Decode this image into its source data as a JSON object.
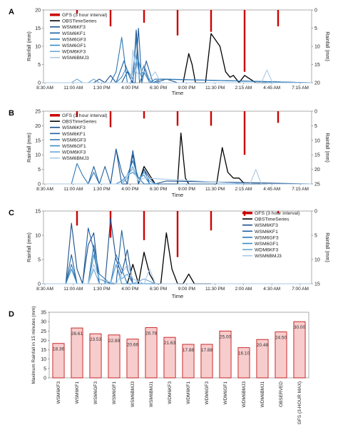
{
  "colors": {
    "obs": "#000000",
    "gfs": "#cc0000",
    "wsm6kf3": "#1b4e8a",
    "wsm6kf1": "#1f5f9e",
    "wsm6gf3": "#2e78b5",
    "wsm6gf1": "#3a8cc7",
    "wdm6kf3": "#6aa6d6",
    "wsm6bmj3": "#a9c9e6",
    "bar_fill": "#f7cccc",
    "bar_stroke": "#c00000"
  },
  "chart_data": [
    {
      "type": "line",
      "panel": "A",
      "xlabel": "Time",
      "ylabel": "Rainfall (mm)",
      "y2label": "Rainfall (mm)",
      "ylim": [
        0,
        20
      ],
      "y_ticks": [
        0,
        5,
        10,
        15,
        20
      ],
      "y2lim": [
        0,
        20
      ],
      "y2_ticks": [
        0,
        5,
        10,
        15,
        20
      ],
      "y2_inverted": true,
      "x_ticks": [
        "8:30 AM",
        "11:00 AM",
        "1:30 PM",
        "4:00 PM",
        "6:30 PM",
        "9:00 PM",
        "11:30 PM",
        "2:15 AM",
        "4:45 AM",
        "7:15 AM"
      ],
      "legend": [
        "GFS (3 hour interval)",
        "OBSTimeSeries",
        "WSM6KF3",
        "WSM6KF1",
        "WSM6GF3",
        "WSM6GF1",
        "WDM6KF3",
        "WSM6BMJ3"
      ],
      "legend_position": "top-left",
      "series": [
        {
          "name": "GFS (3 hour interval)",
          "key": "gfs",
          "style": "bar-secondary",
          "x": [
            3.0,
            6.0,
            9.0,
            12.0,
            15.0,
            18.0,
            21.0
          ],
          "values": [
            1.0,
            4.5,
            3.5,
            7.0,
            6.0,
            17.0,
            4.5
          ]
        },
        {
          "name": "OBSTimeSeries",
          "key": "obs",
          "x": [
            12.5,
            13.0,
            13.3,
            13.6,
            14.0,
            14.5,
            15.0,
            15.8,
            16.3,
            16.7,
            17.0,
            17.5,
            18.0,
            18.5,
            19.0,
            20.0
          ],
          "values": [
            0,
            8,
            5,
            0,
            0,
            0,
            13.5,
            10,
            3,
            1.5,
            2,
            0,
            2,
            1,
            0,
            0
          ]
        },
        {
          "name": "WSM6KF3",
          "key": "wsm6kf3",
          "x": [
            0,
            4.5,
            5.0,
            5.5,
            6.0,
            6.5,
            7.0,
            7.5,
            8.0,
            8.3,
            8.6,
            9.0,
            9.5,
            10,
            11,
            12,
            24
          ],
          "values": [
            0,
            0,
            1,
            0,
            2,
            0,
            0,
            3,
            0,
            14.5,
            2,
            4.5,
            0,
            0,
            1,
            0,
            0
          ]
        },
        {
          "name": "WSM6KF1",
          "key": "wsm6kf1",
          "x": [
            0,
            6.5,
            7.2,
            7.9,
            8.2,
            8.5,
            8.8,
            9.2,
            9.8,
            10.5,
            24
          ],
          "values": [
            0,
            0,
            6,
            0,
            0,
            15,
            0,
            6,
            0,
            1,
            0
          ]
        },
        {
          "name": "WSM6GF3",
          "key": "wsm6gf3",
          "x": [
            0,
            6.0,
            6.5,
            7.0,
            7.5,
            8.0,
            8.3,
            8.6,
            9.0,
            9.5,
            10.0,
            24
          ],
          "values": [
            0,
            0,
            3,
            12.5,
            0,
            0,
            12.5,
            0,
            3,
            0,
            1,
            0
          ]
        },
        {
          "name": "WSM6GF1",
          "key": "wsm6gf1",
          "x": [
            0,
            6.5,
            7.0,
            7.4,
            8.0,
            8.4,
            8.8,
            9.2,
            9.7,
            24
          ],
          "values": [
            0,
            0,
            1.5,
            4,
            1,
            7,
            3,
            2,
            0,
            0
          ]
        },
        {
          "name": "WDM6KF3",
          "key": "wdm6kf3",
          "x": [
            0,
            2.5,
            3.0,
            3.5,
            4.0,
            4.5,
            5.0,
            7.8,
            8.2,
            8.6,
            9.0,
            9.5,
            24
          ],
          "values": [
            0,
            0,
            1,
            0,
            0,
            1,
            0,
            0,
            8,
            2,
            3,
            0,
            0
          ]
        },
        {
          "name": "WSM6BMJ3",
          "key": "wsm6bmj3",
          "x": [
            0,
            7.8,
            8.0,
            8.3,
            8.6,
            9.0,
            9.5,
            10.0,
            10.5,
            11,
            19.5,
            20.0,
            20.5,
            24
          ],
          "values": [
            0,
            0,
            9,
            3,
            2,
            5,
            1,
            3,
            0,
            0,
            0,
            3.5,
            0,
            0
          ]
        }
      ]
    },
    {
      "type": "line",
      "panel": "B",
      "xlabel": "Time",
      "ylabel": "Rainfall (mm)",
      "y2label": "Rainfall (mm)",
      "ylim": [
        0,
        25
      ],
      "y_ticks": [
        0,
        5,
        10,
        15,
        20,
        25
      ],
      "y2lim": [
        0,
        25
      ],
      "y2_ticks": [
        0,
        5,
        10,
        15,
        20,
        25
      ],
      "y2_inverted": true,
      "x_ticks": [
        "8:30 AM",
        "11:00 AM",
        "1:30 PM",
        "4:00 PM",
        "6:30 PM",
        "9:00 PM",
        "11:30 PM",
        "2:15 AM",
        "4:45 AM",
        "7:15 AM"
      ],
      "legend": [
        "GFS (3 hour interval)",
        "OBSTimeSeries",
        "WSM6KF3",
        "WSM6KF1",
        "WSM6GF3",
        "WSM6GF1",
        "WDM6KF3",
        "WSM6BMJ3"
      ],
      "legend_position": "top-left",
      "series": [
        {
          "name": "GFS (3 hour interval)",
          "key": "gfs",
          "style": "bar-secondary",
          "x": [
            3.0,
            6.0,
            9.0,
            12.0,
            15.0,
            18.0,
            21.0
          ],
          "values": [
            2.0,
            5.5,
            2.5,
            5.0,
            5.0,
            15.0,
            4.0
          ]
        },
        {
          "name": "OBSTimeSeries",
          "key": "obs",
          "x": [
            8.5,
            9.0,
            9.5,
            10.0,
            12.0,
            12.3,
            12.7,
            13.0,
            13.5,
            14.0,
            15.5,
            16.0,
            16.5,
            17.0,
            17.5,
            18.0,
            19.0,
            20.0
          ],
          "values": [
            0,
            6,
            3,
            0,
            0,
            17.5,
            2,
            0,
            0,
            0,
            0,
            12.5,
            4,
            2,
            2,
            0,
            0,
            0
          ]
        },
        {
          "name": "WSM6KF3",
          "key": "wsm6kf3",
          "x": [
            0,
            6.0,
            6.5,
            7.0,
            7.5,
            8.0,
            8.5,
            9.0,
            9.5,
            10.0,
            11.0,
            24
          ],
          "values": [
            0,
            0,
            12,
            0,
            0,
            10,
            0,
            5,
            2,
            0,
            1,
            0
          ]
        },
        {
          "name": "WSM6KF1",
          "key": "wsm6kf1",
          "x": [
            0,
            4.0,
            4.5,
            5.0,
            5.5,
            6.0,
            6.5,
            7.0,
            7.5,
            8.0,
            8.5,
            9.0,
            9.5,
            24
          ],
          "values": [
            0,
            0,
            6,
            0,
            6,
            0,
            12,
            4,
            0,
            11.5,
            0,
            5,
            0,
            0
          ]
        },
        {
          "name": "WSM6GF3",
          "key": "wsm6gf3",
          "x": [
            0,
            2.5,
            3.0,
            3.5,
            4.0,
            4.5,
            5.0,
            7.0,
            7.5,
            8.0,
            8.5,
            9.0,
            24
          ],
          "values": [
            0,
            0,
            7,
            3,
            0,
            4,
            0,
            0,
            3,
            8,
            2,
            0,
            0
          ]
        },
        {
          "name": "WSM6GF1",
          "key": "wsm6gf1",
          "x": [
            0,
            6.5,
            7.0,
            7.5,
            8.0,
            8.5,
            9.0,
            9.5,
            24
          ],
          "values": [
            0,
            0,
            1,
            3,
            4,
            2,
            3,
            0,
            0
          ]
        },
        {
          "name": "WDM6KF3",
          "key": "wdm6kf3",
          "x": [
            0,
            7.0,
            7.5,
            8.0,
            8.5,
            9.0,
            9.5,
            10.0,
            24
          ],
          "values": [
            0,
            0,
            2,
            6,
            1,
            4,
            1,
            0,
            0
          ]
        },
        {
          "name": "WSM6BMJ3",
          "key": "wsm6bmj3",
          "x": [
            0,
            7.0,
            7.5,
            8.0,
            8.5,
            9.0,
            18.5,
            19.0,
            19.5,
            24
          ],
          "values": [
            0,
            0,
            3,
            5,
            1,
            2,
            0,
            5,
            0,
            0
          ]
        }
      ]
    },
    {
      "type": "line",
      "panel": "C",
      "xlabel": "Time",
      "ylabel": "Rainfall (mm)",
      "y2label": "Rainfall (mm)",
      "ylim": [
        0,
        15
      ],
      "y_ticks": [
        0,
        5,
        10,
        15
      ],
      "y2lim": [
        0,
        15
      ],
      "y2_ticks": [
        0,
        5,
        10,
        15
      ],
      "y2_inverted": true,
      "x_ticks": [
        "8:30 AM",
        "11:00 AM",
        "1:30 PM",
        "4:00 PM",
        "6:30 PM",
        "9:00 PM",
        "11:30 PM",
        "2:00 AM",
        "4:30 AM",
        "7:00 AM"
      ],
      "legend": [
        "GFS (3 hour interval)",
        "OBSTimeSeries",
        "WSM6KF3",
        "WSM6KF1",
        "WSM6GF3",
        "WSM6GF1",
        "WDM6KF3",
        "WSM6BMJ3"
      ],
      "legend_position": "top-right",
      "series": [
        {
          "name": "GFS (3 hour interval)",
          "key": "gfs",
          "style": "bar-secondary",
          "x": [
            3.0,
            6.0,
            9.0,
            12.0,
            15.0,
            18.0,
            21.0
          ],
          "values": [
            3.0,
            5.5,
            6.0,
            9.5,
            4.0,
            1.0,
            0.5
          ]
        },
        {
          "name": "OBSTimeSeries",
          "key": "obs",
          "x": [
            7.5,
            8.0,
            8.5,
            9.0,
            9.5,
            10.0,
            10.5,
            11.0,
            11.5,
            12.0,
            12.5,
            13.0,
            13.5,
            14.0,
            15.0
          ],
          "values": [
            0,
            4,
            0,
            6.5,
            2,
            0,
            0,
            10.5,
            3,
            0,
            0,
            2,
            0,
            0,
            0
          ]
        },
        {
          "name": "WSM6KF3",
          "key": "wsm6kf3",
          "x": [
            0,
            2.0,
            2.5,
            3.0,
            3.5,
            4.0,
            4.5,
            5.0,
            5.5,
            6.0,
            6.5,
            7.0,
            7.5,
            8.0,
            24
          ],
          "values": [
            0,
            0,
            12.5,
            3,
            0,
            8,
            10.5,
            0,
            0,
            13.5,
            5,
            2,
            7,
            0,
            0
          ]
        },
        {
          "name": "WSM6KF1",
          "key": "wsm6kf1",
          "x": [
            0,
            2.0,
            2.5,
            3.0,
            3.5,
            4.0,
            4.5,
            5.0,
            6.5,
            7.0,
            7.5,
            8.0,
            24
          ],
          "values": [
            0,
            0,
            6,
            0,
            0,
            11.5,
            7,
            0,
            0,
            11,
            3,
            0,
            0
          ]
        },
        {
          "name": "WSM6GF3",
          "key": "wsm6gf3",
          "x": [
            0,
            2.0,
            2.5,
            3.0,
            4.0,
            4.5,
            5.0,
            6.0,
            6.5,
            7.0,
            7.5,
            24
          ],
          "values": [
            0,
            0,
            4,
            0,
            0,
            8,
            2,
            0,
            6,
            3,
            0,
            0
          ]
        },
        {
          "name": "WSM6GF1",
          "key": "wsm6gf1",
          "x": [
            0,
            2.0,
            2.5,
            3.0,
            4.0,
            4.5,
            5.0,
            6.0,
            6.5,
            7.0,
            24
          ],
          "values": [
            0,
            0,
            3,
            0,
            0,
            6,
            1,
            0,
            4,
            0,
            0
          ]
        },
        {
          "name": "WDM6KF3",
          "key": "wdm6kf3",
          "x": [
            0,
            4.0,
            4.5,
            5.0,
            6.0,
            6.5,
            7.0,
            7.5,
            8.0,
            9.0,
            10.0,
            24
          ],
          "values": [
            0,
            0,
            3,
            0,
            0,
            4,
            1,
            2,
            0,
            1,
            0,
            0
          ]
        },
        {
          "name": "WSM6BMJ3",
          "key": "wsm6bmj3",
          "x": [
            0,
            4.0,
            4.5,
            5.0,
            6.5,
            7.0,
            7.5,
            8.0,
            9.0,
            9.5,
            10.0,
            24
          ],
          "values": [
            0,
            0,
            4,
            1,
            0,
            2,
            4,
            1,
            0,
            3,
            0,
            0
          ]
        }
      ]
    },
    {
      "type": "bar",
      "panel": "D",
      "ylabel": "Maximum Rainfall in 15 minutes (mm)",
      "ylim": [
        0,
        35
      ],
      "y_ticks": [
        0,
        5,
        10,
        15,
        20,
        25,
        30,
        35
      ],
      "categories": [
        "WSM6KF3",
        "WSM6KF1",
        "WSM6GF3",
        "WSM6GF1",
        "WSM6BMJ3",
        "WSM6BMJ1",
        "WDM6KF3",
        "WDM6KF1",
        "WDM6GF3",
        "WDM6GF1",
        "WDM6BMJ3",
        "WDM6BMJ1",
        "OBSERVED",
        "GFS (3-HOUR MAX)"
      ],
      "values": [
        18.36,
        26.61,
        23.53,
        22.89,
        20.66,
        26.78,
        21.63,
        17.88,
        17.88,
        25.0,
        16.1,
        20.48,
        24.5,
        30.0
      ],
      "labels": [
        "18.36",
        "26.61",
        "23.53",
        "22.89",
        "20.66",
        "26.78",
        "21.63",
        "17.88",
        "17.88",
        "25.00",
        "16.10",
        "20.48",
        "24.50",
        "30.00"
      ]
    }
  ]
}
